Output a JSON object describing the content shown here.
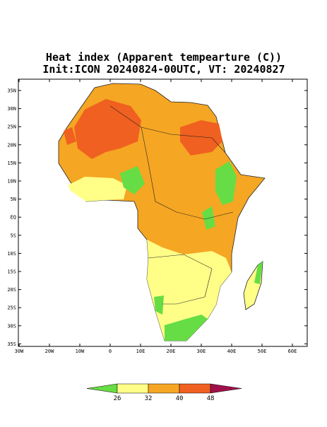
{
  "header": {
    "title": "Heat index (Apparent tempearture (C))",
    "subtitle": "Init:ICON 20240824-00UTC, VT: 20240827"
  },
  "axis": {
    "lat_labels": [
      "35N",
      "30N",
      "25N",
      "20N",
      "15N",
      "10N",
      "5N",
      "EQ",
      "5S",
      "10S",
      "15S",
      "20S",
      "25S",
      "30S",
      "35S"
    ],
    "lon_labels": [
      "30W",
      "20W",
      "10W",
      "0",
      "10E",
      "20E",
      "30E",
      "40E",
      "50E",
      "60E"
    ]
  },
  "colorbar": {
    "levels": [
      26,
      32,
      40,
      48
    ],
    "colors": [
      "#66dd44",
      "#ffff88",
      "#f5a623",
      "#f06020",
      "#a0104a"
    ]
  }
}
